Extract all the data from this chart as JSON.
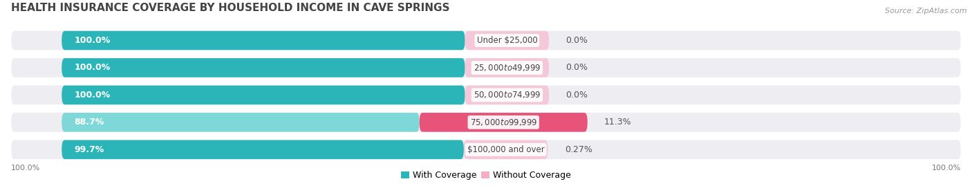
{
  "title": "HEALTH INSURANCE COVERAGE BY HOUSEHOLD INCOME IN CAVE SPRINGS",
  "source": "Source: ZipAtlas.com",
  "categories": [
    "Under $25,000",
    "$25,000 to $49,999",
    "$50,000 to $74,999",
    "$75,000 to $99,999",
    "$100,000 and over"
  ],
  "with_coverage": [
    100.0,
    100.0,
    100.0,
    88.7,
    99.7
  ],
  "without_coverage": [
    0.0,
    0.0,
    0.0,
    11.3,
    0.27
  ],
  "with_color_full": "#2bb5b8",
  "with_color_partial": "#7fd8d8",
  "without_color_small": "#f4aec8",
  "without_color_large": "#e8537a",
  "without_color_tiny": "#f4c8d8",
  "bar_bg_color": "#ededf2",
  "background_color": "#ffffff",
  "row_bg_odd": "#f7f7fa",
  "row_bg_even": "#ffffff",
  "title_fontsize": 11,
  "label_fontsize": 9,
  "category_fontsize": 8.5,
  "legend_fontsize": 9,
  "source_fontsize": 8
}
